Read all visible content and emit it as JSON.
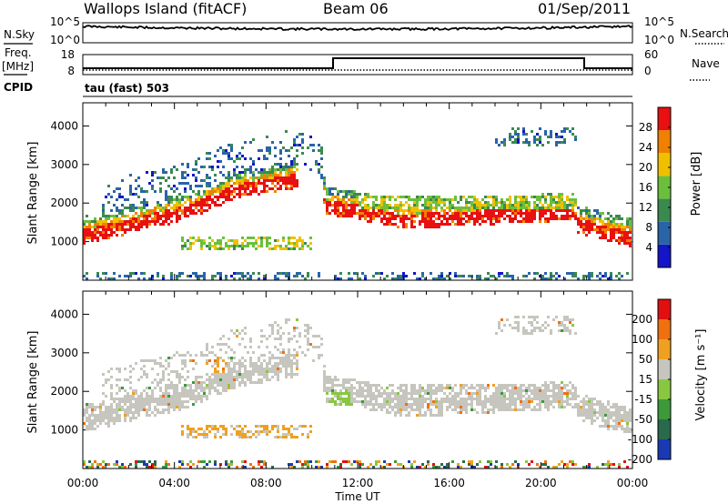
{
  "header": {
    "station": "Wallops Island (fitACF)",
    "beam": "Beam 06",
    "date": "01/Sep/2011"
  },
  "strip": {
    "nsky_label": "N.Sky",
    "nsky_ticks": [
      "10^5",
      "10^0"
    ],
    "nsearch_label": "N.Search",
    "nsearch_ticks": [
      "10^5",
      "10^0"
    ],
    "freq_label": "Freq.",
    "freq_unit": "[MHz]",
    "freq_ticks": [
      "18",
      "8"
    ],
    "nave_label": "Nave",
    "nave_ticks": [
      "60",
      "0"
    ],
    "cpid_label": "CPID",
    "cpid_value": "tau (fast) 503"
  },
  "chart_data": [
    {
      "type": "heatmap",
      "name": "power",
      "ylabel": "Slant Range [km]",
      "yticks": [
        1000,
        2000,
        3000,
        4000
      ],
      "ylim": [
        0,
        4600
      ],
      "xlim_hours": [
        0,
        24
      ],
      "colorbar_label": "Power [dB]",
      "colorbar_ticks": [
        "28",
        "24",
        "20",
        "16",
        "12",
        "8",
        "4"
      ],
      "colors": [
        "#1414c8",
        "#2a64a8",
        "#3a8a50",
        "#6cbf3c",
        "#f0c000",
        "#f08000",
        "#e81010"
      ]
    },
    {
      "type": "heatmap",
      "name": "velocity",
      "ylabel": "Slant Range [km]",
      "yticks": [
        1000,
        2000,
        3000,
        4000
      ],
      "ylim": [
        0,
        4600
      ],
      "xlim_hours": [
        0,
        24
      ],
      "colorbar_label": "Velocity [m s⁻¹]",
      "colorbar_ticks": [
        "200",
        "100",
        "50",
        "15",
        "-15",
        "-50",
        "-100",
        "-200"
      ],
      "colors": [
        "#1a3ab4",
        "#2a6a4c",
        "#3c9a3a",
        "#88c840",
        "#c6c6be",
        "#f0a020",
        "#f07010",
        "#e01010"
      ],
      "xticks": [
        "00:00",
        "04:00",
        "08:00",
        "12:00",
        "16:00",
        "20:00",
        "00:00"
      ],
      "xlabel": "Time UT"
    }
  ]
}
